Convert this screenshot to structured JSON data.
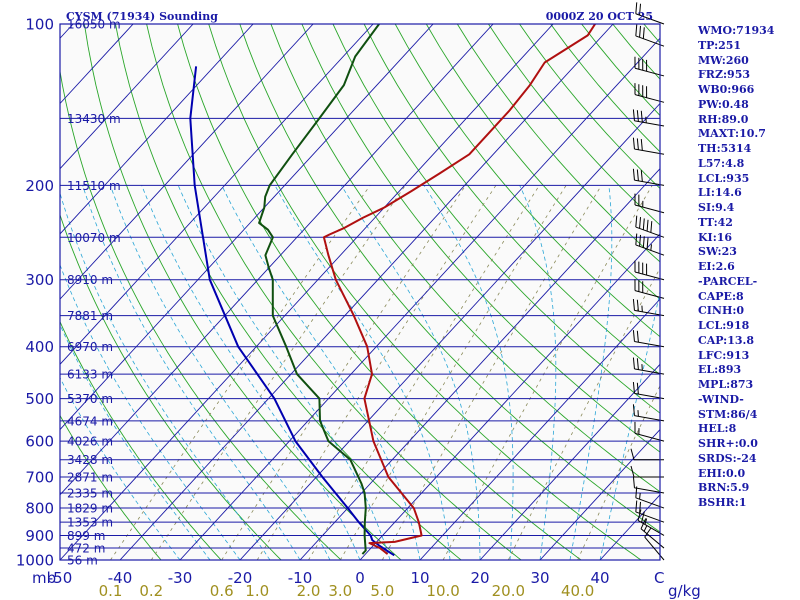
{
  "header": {
    "station": "CYSM (71934) Sounding",
    "time": "0000Z 20 OCT 25"
  },
  "indices": [
    "WMO:71934",
    "TP:251",
    "MW:260",
    "FRZ:953",
    "WB0:966",
    "PW:0.48",
    "RH:89.0",
    "MAXT:10.7",
    "TH:5314",
    "L57:4.8",
    "LCL:935",
    "LI:14.6",
    "SI:9.4",
    "TT:42",
    "KI:16",
    "SW:23",
    "EI:2.6",
    "-PARCEL-",
    "CAPE:8",
    "CINH:0",
    "LCL:918",
    "CAP:13.8",
    "LFC:913",
    "EL:893",
    "MPL:873",
    "-WIND-",
    "STM:86/4",
    "HEL:8",
    "SHR+:0.0",
    "SRDS:-24",
    "EHI:0.0",
    "BRN:5.9",
    "BSHR:1"
  ],
  "colors": {
    "isobar": "#1a1aa6",
    "isotherm": "#1a1aa6",
    "dry_adiabat": "#2aa62a",
    "moist_adiabat": "#2aa6d6",
    "mixing_ratio": "#8a8a5a",
    "temperature": "#b01010",
    "dewpoint": "#105010",
    "parcel": "#0000b0",
    "wind": "#000000"
  },
  "chart_data": {
    "type": "line",
    "subtype": "skew-t log-p sounding",
    "title": "CYSM (71934) Sounding",
    "valid_time": "0000Z 20 OCT 25",
    "xlabel": "C",
    "ylabel": "mb",
    "xlim": [
      -50,
      50
    ],
    "ylim": [
      1000,
      100
    ],
    "pressure_ticks": [
      {
        "p": 100,
        "label": "100"
      },
      {
        "p": 200,
        "label": "200"
      },
      {
        "p": 300,
        "label": "300"
      },
      {
        "p": 400,
        "label": "400"
      },
      {
        "p": 500,
        "label": "500"
      },
      {
        "p": 600,
        "label": "600"
      },
      {
        "p": 700,
        "label": "700"
      },
      {
        "p": 800,
        "label": "800"
      },
      {
        "p": 900,
        "label": "900"
      },
      {
        "p": 1000,
        "label": "1000"
      }
    ],
    "temperature_ticks": [
      {
        "t": -50,
        "label": "-50"
      },
      {
        "t": -40,
        "label": "-40"
      },
      {
        "t": -30,
        "label": "-30"
      },
      {
        "t": -20,
        "label": "-20"
      },
      {
        "t": -10,
        "label": "-10"
      },
      {
        "t": 0,
        "label": "0"
      },
      {
        "t": 10,
        "label": "10"
      },
      {
        "t": 20,
        "label": "20"
      },
      {
        "t": 30,
        "label": "30"
      },
      {
        "t": 40,
        "label": "40"
      }
    ],
    "height_labels": [
      {
        "p": 100,
        "label": "16050 m"
      },
      {
        "p": 150,
        "label": "13430 m"
      },
      {
        "p": 200,
        "label": "11510 m"
      },
      {
        "p": 250,
        "label": "10070 m"
      },
      {
        "p": 300,
        "label": "8910 m"
      },
      {
        "p": 350,
        "label": "7881 m"
      },
      {
        "p": 400,
        "label": "6970 m"
      },
      {
        "p": 450,
        "label": "6133 m"
      },
      {
        "p": 500,
        "label": "5370 m"
      },
      {
        "p": 550,
        "label": "4674 m"
      },
      {
        "p": 600,
        "label": "4026 m"
      },
      {
        "p": 650,
        "label": "3428 m"
      },
      {
        "p": 700,
        "label": "2871 m"
      },
      {
        "p": 750,
        "label": "2335 m"
      },
      {
        "p": 800,
        "label": "1829 m"
      },
      {
        "p": 850,
        "label": "1353 m"
      },
      {
        "p": 900,
        "label": "899 m"
      },
      {
        "p": 950,
        "label": "472 m"
      },
      {
        "p": 1000,
        "label": "56 m"
      }
    ],
    "mixing_ratios": [
      {
        "w": 0.1,
        "label": "0.1"
      },
      {
        "w": 0.2,
        "label": "0.2"
      },
      {
        "w": 0.6,
        "label": "0.6"
      },
      {
        "w": 1.0,
        "label": "1.0"
      },
      {
        "w": 2.0,
        "label": "2.0"
      },
      {
        "w": 3.0,
        "label": "3.0"
      },
      {
        "w": 5.0,
        "label": "5.0"
      },
      {
        "w": 10.0,
        "label": "10.0"
      },
      {
        "w": 20.0,
        "label": "20.0"
      },
      {
        "w": 40.0,
        "label": "40.0"
      }
    ],
    "mixing_unit": "g/kg",
    "temperature_profile": [
      [
        975,
        3.7
      ],
      [
        950,
        1.5
      ],
      [
        930,
        -1.0
      ],
      [
        925,
        3.0
      ],
      [
        900,
        6.5
      ],
      [
        850,
        4.0
      ],
      [
        800,
        1.0
      ],
      [
        700,
        -8.0
      ],
      [
        600,
        -16.0
      ],
      [
        500,
        -24.0
      ],
      [
        450,
        -26.5
      ],
      [
        400,
        -31.5
      ],
      [
        350,
        -38.5
      ],
      [
        300,
        -47.0
      ],
      [
        270,
        -52.0
      ],
      [
        250,
        -55.5
      ],
      [
        247,
        -55.0
      ],
      [
        240,
        -53.5
      ],
      [
        230,
        -52.0
      ],
      [
        220,
        -50.0
      ],
      [
        205,
        -48.0
      ],
      [
        190,
        -46.0
      ],
      [
        175,
        -44.0
      ],
      [
        160,
        -44.0
      ],
      [
        145,
        -44.0
      ],
      [
        130,
        -44.5
      ],
      [
        118,
        -45.5
      ],
      [
        105,
        -42.5
      ],
      [
        100,
        -43.0
      ]
    ],
    "dewpoint_profile": [
      [
        975,
        -0.5
      ],
      [
        960,
        -0.5
      ],
      [
        900,
        -3.0
      ],
      [
        850,
        -5.0
      ],
      [
        800,
        -7.0
      ],
      [
        750,
        -9.5
      ],
      [
        720,
        -11.5
      ],
      [
        700,
        -13.0
      ],
      [
        650,
        -17.0
      ],
      [
        600,
        -23.5
      ],
      [
        550,
        -28.0
      ],
      [
        500,
        -31.5
      ],
      [
        450,
        -39.0
      ],
      [
        400,
        -45.0
      ],
      [
        350,
        -52.0
      ],
      [
        300,
        -57.5
      ],
      [
        285,
        -60.0
      ],
      [
        270,
        -62.5
      ],
      [
        250,
        -64.0
      ],
      [
        242,
        -66.0
      ],
      [
        235,
        -68.5
      ],
      [
        220,
        -70.0
      ],
      [
        210,
        -71.5
      ],
      [
        200,
        -72.5
      ],
      [
        175,
        -73.5
      ],
      [
        150,
        -74.5
      ],
      [
        130,
        -75.5
      ],
      [
        115,
        -78.0
      ],
      [
        100,
        -79.0
      ]
    ],
    "parcel_profile": [
      [
        980,
        5.0
      ],
      [
        960,
        3.0
      ],
      [
        940,
        1.0
      ],
      [
        918,
        -1.0
      ],
      [
        900,
        -2.0
      ],
      [
        850,
        -6.0
      ],
      [
        800,
        -10.0
      ],
      [
        700,
        -19.0
      ],
      [
        600,
        -29.0
      ],
      [
        500,
        -39.0
      ],
      [
        400,
        -53.0
      ],
      [
        300,
        -68.0
      ],
      [
        200,
        -85.0
      ],
      [
        150,
        -96.0
      ],
      [
        120,
        -103.0
      ]
    ],
    "wind_barbs": [
      {
        "p": 100,
        "dir": 290,
        "spd": 20
      },
      {
        "p": 110,
        "dir": 290,
        "spd": 30
      },
      {
        "p": 125,
        "dir": 285,
        "spd": 40
      },
      {
        "p": 140,
        "dir": 285,
        "spd": 40
      },
      {
        "p": 155,
        "dir": 280,
        "spd": 35
      },
      {
        "p": 175,
        "dir": 280,
        "spd": 30
      },
      {
        "p": 200,
        "dir": 280,
        "spd": 30
      },
      {
        "p": 225,
        "dir": 285,
        "spd": 25
      },
      {
        "p": 250,
        "dir": 290,
        "spd": 50
      },
      {
        "p": 270,
        "dir": 290,
        "spd": 45
      },
      {
        "p": 300,
        "dir": 285,
        "spd": 40
      },
      {
        "p": 325,
        "dir": 285,
        "spd": 30
      },
      {
        "p": 350,
        "dir": 280,
        "spd": 25
      },
      {
        "p": 400,
        "dir": 280,
        "spd": 20
      },
      {
        "p": 450,
        "dir": 280,
        "spd": 25
      },
      {
        "p": 500,
        "dir": 280,
        "spd": 20
      },
      {
        "p": 550,
        "dir": 280,
        "spd": 15
      },
      {
        "p": 600,
        "dir": 285,
        "spd": 15
      },
      {
        "p": 650,
        "dir": 270,
        "spd": 10
      },
      {
        "p": 700,
        "dir": 270,
        "spd": 10
      },
      {
        "p": 750,
        "dir": 280,
        "spd": 10
      },
      {
        "p": 800,
        "dir": 290,
        "spd": 15
      },
      {
        "p": 850,
        "dir": 290,
        "spd": 20
      },
      {
        "p": 900,
        "dir": 300,
        "spd": 25
      },
      {
        "p": 950,
        "dir": 310,
        "spd": 15
      },
      {
        "p": 1000,
        "dir": 320,
        "spd": 10
      }
    ]
  }
}
